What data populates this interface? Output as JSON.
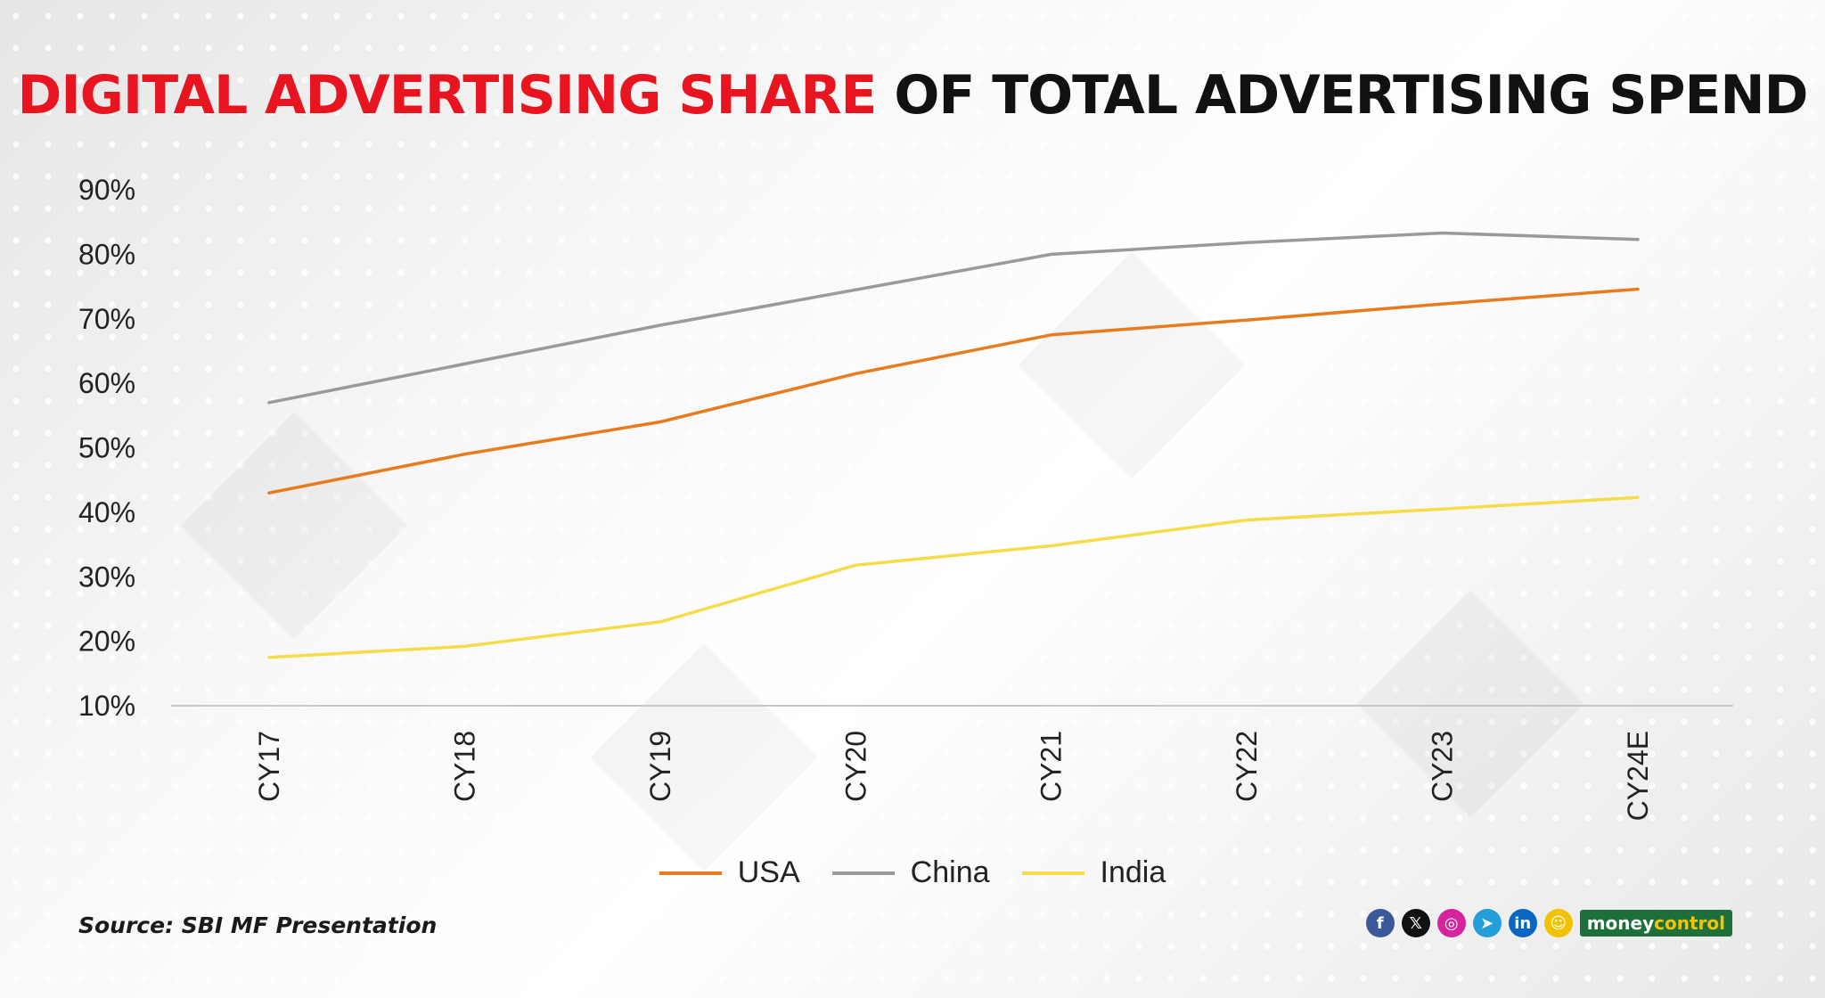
{
  "title": {
    "red_part": "DIGITAL ADVERTISING SHARE",
    "black_part": "OF TOTAL ADVERTISING SPEND"
  },
  "chart_data": {
    "type": "line",
    "title": "DIGITAL ADVERTISING SHARE OF TOTAL ADVERTISING SPEND",
    "xlabel": "",
    "ylabel": "",
    "categories": [
      "CY17",
      "CY18",
      "CY19",
      "CY20",
      "CY21",
      "CY22",
      "CY23",
      "CY24E"
    ],
    "yticks": [
      "10%",
      "20%",
      "30%",
      "40%",
      "50%",
      "60%",
      "70%",
      "80%",
      "90%"
    ],
    "ylim": [
      10,
      90
    ],
    "grid": false,
    "legend_position": "bottom",
    "series": [
      {
        "name": "USA",
        "color": "#e87b1e",
        "values": [
          43,
          49,
          54,
          61.5,
          67.5,
          69.8,
          72.3,
          74.6
        ]
      },
      {
        "name": "China",
        "color": "#9a9a9a",
        "values": [
          57,
          63,
          69,
          74.5,
          80,
          81.8,
          83.3,
          82.3
        ]
      },
      {
        "name": "India",
        "color": "#f7dc4a",
        "values": [
          17.5,
          19.2,
          23,
          31.8,
          34.8,
          38.8,
          40.5,
          42.3
        ]
      }
    ]
  },
  "source": "Source: SBI MF Presentation",
  "footer": {
    "icons": [
      {
        "name": "facebook-icon",
        "glyph": "f",
        "color": "#3b5998"
      },
      {
        "name": "x-icon",
        "glyph": "𝕏",
        "color": "#111111"
      },
      {
        "name": "instagram-icon",
        "glyph": "◎",
        "color": "#d6249f"
      },
      {
        "name": "telegram-icon",
        "glyph": "➤",
        "color": "#229ed9"
      },
      {
        "name": "linkedin-icon",
        "glyph": "in",
        "color": "#0a66c2"
      },
      {
        "name": "snapchat-icon",
        "glyph": "☺",
        "color": "#f2c200"
      }
    ],
    "brand_a": "money",
    "brand_b": "control"
  }
}
